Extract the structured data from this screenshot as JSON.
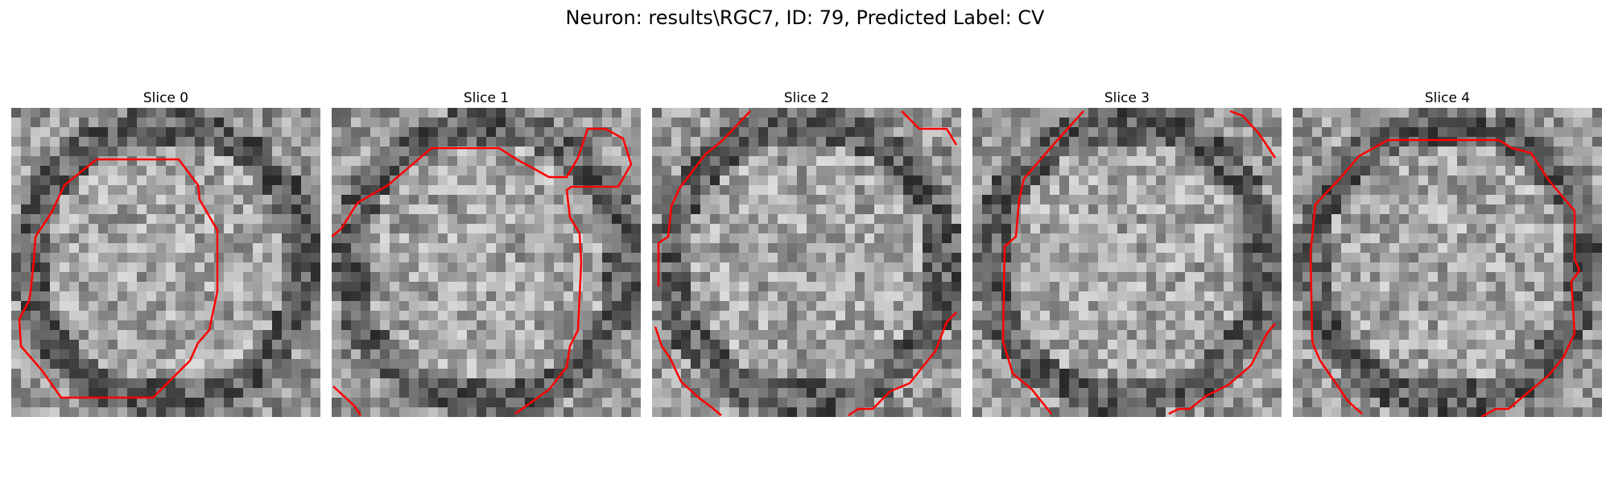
{
  "figure": {
    "title": "Neuron: results\\RGC7, ID: 79, Predicted Label: CV"
  },
  "colors": {
    "contour": "#ff0000"
  },
  "panels": [
    {
      "title": "Slice 0"
    },
    {
      "title": "Slice 1"
    },
    {
      "title": "Slice 2"
    },
    {
      "title": "Slice 3"
    },
    {
      "title": "Slice 4"
    }
  ]
}
